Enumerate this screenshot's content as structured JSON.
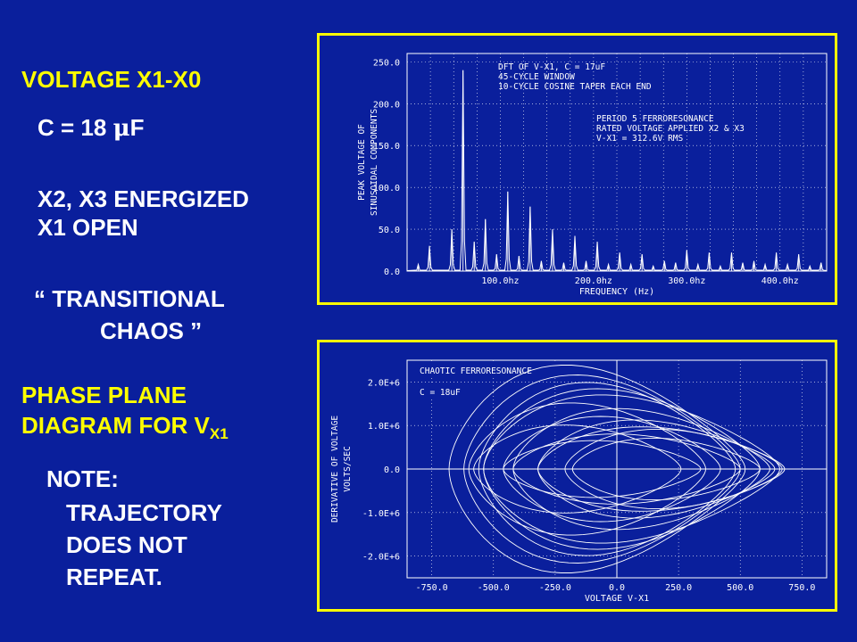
{
  "left": {
    "title": "VOLTAGE  X1-X0",
    "cap_prefix": "C = 18 ",
    "cap_unit_mu": "μ",
    "cap_unit_f": "F",
    "energized": "X2, X3 ENERGIZED",
    "open": "X1 OPEN",
    "transitional": "“ TRANSITIONAL",
    "chaos": "CHAOS ”",
    "phase_line1": "PHASE PLANE",
    "phase_line2": "DIAGRAM FOR V",
    "phase_sub": "X1",
    "note": "NOTE:",
    "note1": "TRAJECTORY",
    "note2": "DOES NOT",
    "note3": "REPEAT."
  },
  "colors": {
    "background": "#0a1f9c",
    "accent": "#ffff00",
    "text": "#ffffff"
  },
  "chart_data": [
    {
      "type": "line",
      "xlabel": "FREQUENCY (Hz)",
      "ylabel_line1": "PEAK VOLTAGE OF",
      "ylabel_line2": "SINUSOIDAL COMPONENTS",
      "xlim": [
        0,
        450
      ],
      "ylim": [
        0,
        260
      ],
      "xticks": [
        100,
        200,
        300,
        400
      ],
      "xtick_labels": [
        "100.0hz",
        "200.0hz",
        "300.0hz",
        "400.0hz"
      ],
      "yticks": [
        0,
        50,
        100,
        150,
        200,
        250
      ],
      "ytick_labels": [
        "0.0",
        "50.0",
        "100.0",
        "150.0",
        "200.0",
        "250.0"
      ],
      "annotations": [
        "DFT OF V-X1, C = 17uF",
        "45-CYCLE WINDOW",
        "10-CYCLE COSINE TAPER EACH END",
        "PERIOD 5 FERRORESONANCE",
        "RATED VOLTAGE APPLIED X2 & X3",
        "V-X1 = 312.6V RMS"
      ],
      "peaks": [
        {
          "x": 12,
          "y": 8
        },
        {
          "x": 24,
          "y": 30
        },
        {
          "x": 48,
          "y": 50
        },
        {
          "x": 60,
          "y": 240
        },
        {
          "x": 72,
          "y": 35
        },
        {
          "x": 84,
          "y": 62
        },
        {
          "x": 96,
          "y": 20
        },
        {
          "x": 108,
          "y": 95
        },
        {
          "x": 120,
          "y": 18
        },
        {
          "x": 132,
          "y": 77
        },
        {
          "x": 144,
          "y": 12
        },
        {
          "x": 156,
          "y": 50
        },
        {
          "x": 168,
          "y": 10
        },
        {
          "x": 180,
          "y": 42
        },
        {
          "x": 192,
          "y": 12
        },
        {
          "x": 204,
          "y": 35
        },
        {
          "x": 216,
          "y": 8
        },
        {
          "x": 228,
          "y": 22
        },
        {
          "x": 240,
          "y": 8
        },
        {
          "x": 252,
          "y": 20
        },
        {
          "x": 264,
          "y": 6
        },
        {
          "x": 276,
          "y": 12
        },
        {
          "x": 288,
          "y": 10
        },
        {
          "x": 300,
          "y": 25
        },
        {
          "x": 312,
          "y": 8
        },
        {
          "x": 324,
          "y": 22
        },
        {
          "x": 336,
          "y": 6
        },
        {
          "x": 348,
          "y": 22
        },
        {
          "x": 360,
          "y": 10
        },
        {
          "x": 372,
          "y": 12
        },
        {
          "x": 384,
          "y": 8
        },
        {
          "x": 396,
          "y": 22
        },
        {
          "x": 408,
          "y": 8
        },
        {
          "x": 420,
          "y": 20
        },
        {
          "x": 432,
          "y": 6
        },
        {
          "x": 444,
          "y": 10
        }
      ]
    },
    {
      "type": "line",
      "xlabel": "VOLTAGE V-X1",
      "ylabel_line1": "DERIVATIVE OF VOLTAGE",
      "ylabel_line2": "VOLTS/SEC",
      "xlim": [
        -850,
        850
      ],
      "ylim": [
        -2500000,
        2500000
      ],
      "xticks": [
        -750,
        -500,
        -250,
        0,
        250,
        500,
        750
      ],
      "xtick_labels": [
        "-750.0",
        "-500.0",
        "-250.0",
        "0.0",
        "250.0",
        "500.0",
        "750.0"
      ],
      "yticks": [
        2000000,
        1000000,
        0,
        -1000000,
        -2000000
      ],
      "ytick_labels": [
        "2.0E+6",
        "1.0E+6",
        "0.0",
        "-1.0E+6",
        "-2.0E+6"
      ],
      "annotations": [
        "CHAOTIC FERRORESONANCE",
        "C = 18uF"
      ],
      "orbits": [
        {
          "cx": -80,
          "amp": 600,
          "peak": 2300000,
          "skew": 0.35
        },
        {
          "cx": -60,
          "amp": 560,
          "peak": 2100000,
          "skew": 0.3
        },
        {
          "cx": -40,
          "amp": 520,
          "peak": 1950000,
          "skew": 0.25
        },
        {
          "cx": 20,
          "amp": 560,
          "peak": 1800000,
          "skew": 0.28
        },
        {
          "cx": 60,
          "amp": 600,
          "peak": 1650000,
          "skew": 0.32
        },
        {
          "cx": -120,
          "amp": 480,
          "peak": 1500000,
          "skew": 0.2
        },
        {
          "cx": 100,
          "amp": 520,
          "peak": 1350000,
          "skew": 0.3
        },
        {
          "cx": -20,
          "amp": 440,
          "peak": 1200000,
          "skew": 0.15
        },
        {
          "cx": 160,
          "amp": 480,
          "peak": 1100000,
          "skew": 0.28
        },
        {
          "cx": 180,
          "amp": 500,
          "peak": 950000,
          "skew": 0.25
        },
        {
          "cx": 230,
          "amp": 440,
          "peak": 900000,
          "skew": 0.22
        },
        {
          "cx": -160,
          "amp": 420,
          "peak": 1000000,
          "skew": 0.18
        },
        {
          "cx": 40,
          "amp": 460,
          "peak": 800000,
          "skew": 0.15
        },
        {
          "cx": 200,
          "amp": 380,
          "peak": 700000,
          "skew": 0.2
        },
        {
          "cx": -60,
          "amp": 400,
          "peak": 650000,
          "skew": 0.12
        }
      ]
    }
  ]
}
